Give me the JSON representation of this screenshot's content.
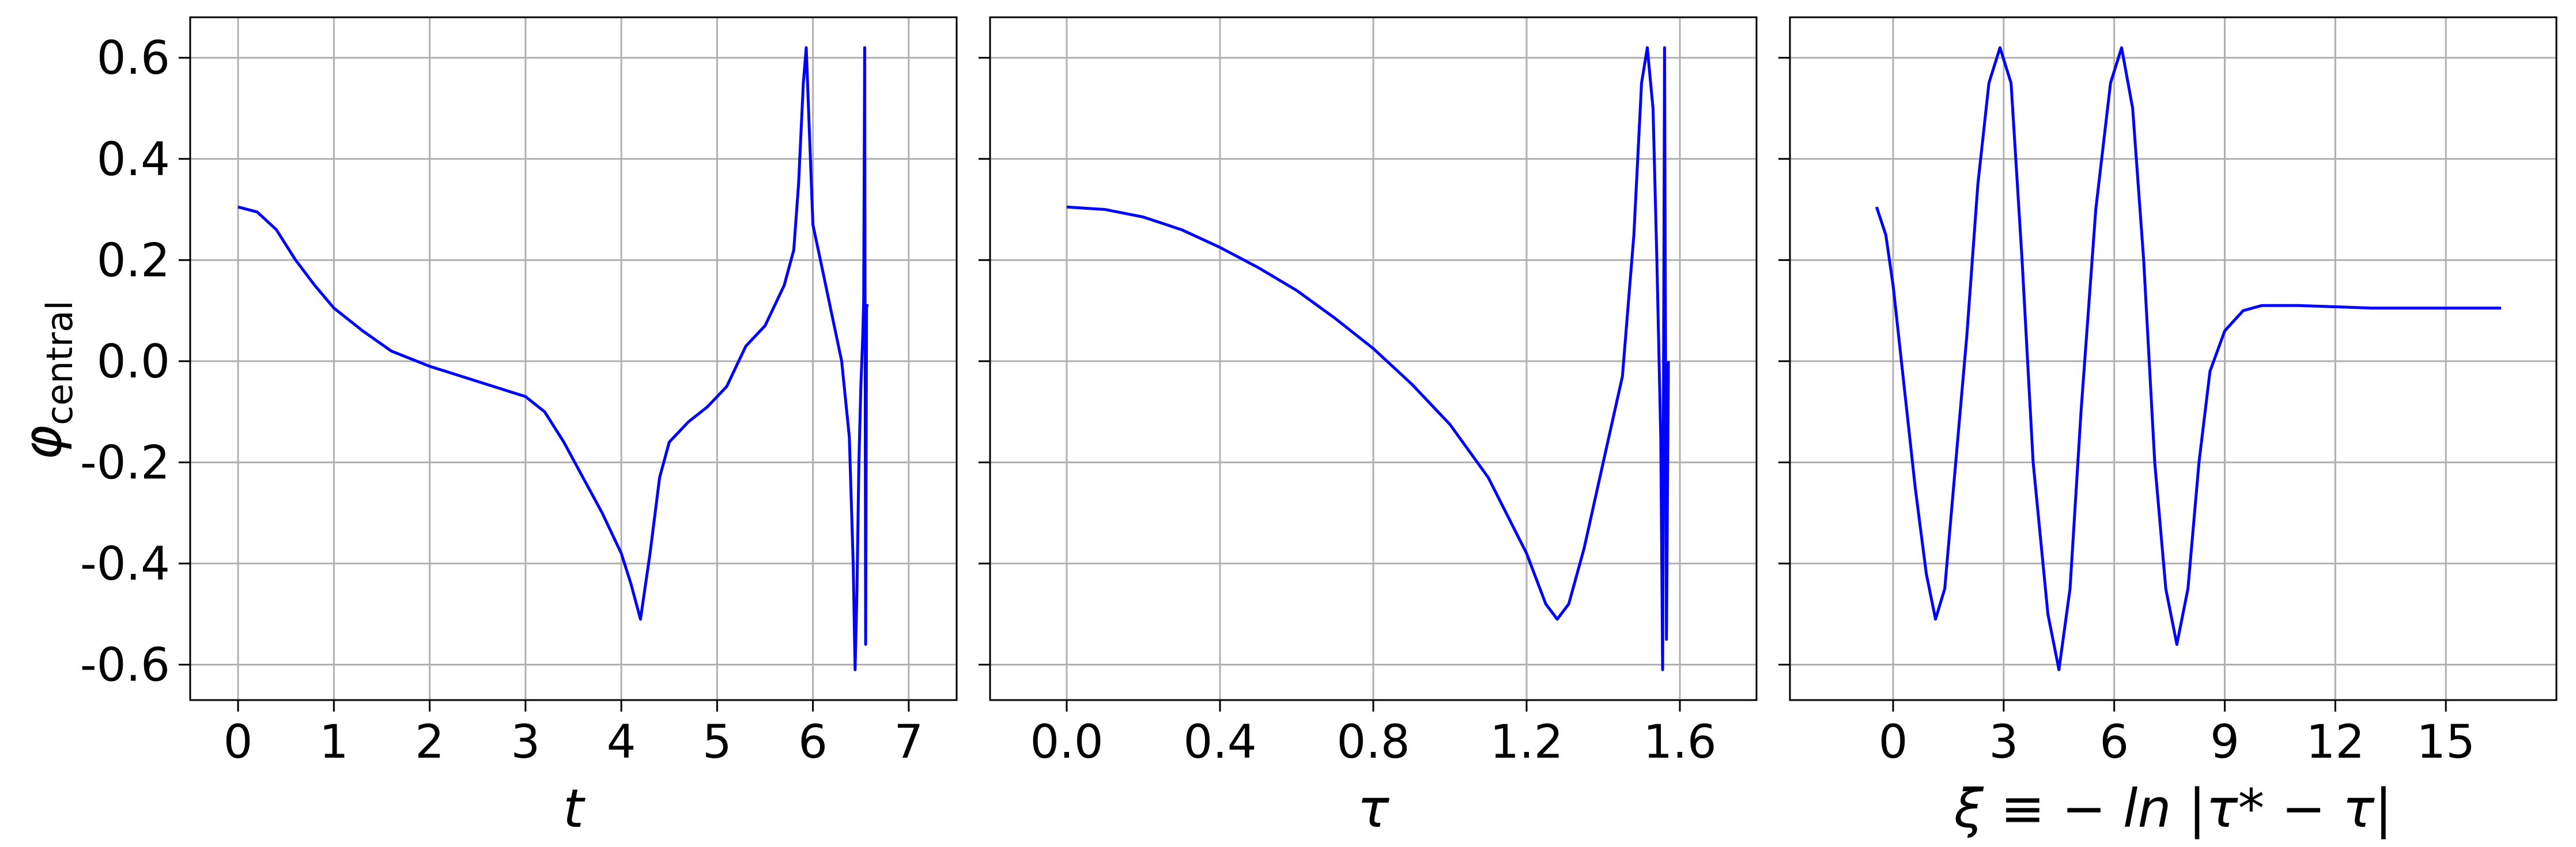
{
  "figure": {
    "ylabel_symbol": "φ",
    "ylabel_subscript": "central",
    "series_color": "#0000ff",
    "grid_color": "#b0b0b0"
  },
  "chart_data": [
    {
      "type": "line",
      "xlabel": "t",
      "xlim": [
        -0.5,
        7.5
      ],
      "ylim": [
        -0.67,
        0.68
      ],
      "xticks": [
        0,
        1,
        2,
        3,
        4,
        5,
        6,
        7
      ],
      "xtick_labels": [
        "0",
        "1",
        "2",
        "3",
        "4",
        "5",
        "6",
        "7"
      ],
      "yticks": [
        -0.6,
        -0.4,
        -0.2,
        0.0,
        0.2,
        0.4,
        0.6
      ],
      "ytick_labels": [
        "-0.6",
        "-0.4",
        "-0.2",
        "0.0",
        "0.2",
        "0.4",
        "0.6"
      ],
      "grid": true,
      "series": [
        {
          "color": "#0000ff",
          "points": [
            [
              0,
              0.305
            ],
            [
              0.2,
              0.295
            ],
            [
              0.4,
              0.26
            ],
            [
              0.6,
              0.2
            ],
            [
              0.8,
              0.15
            ],
            [
              1,
              0.105
            ],
            [
              1.3,
              0.06
            ],
            [
              1.6,
              0.02
            ],
            [
              2,
              -0.01
            ],
            [
              2.5,
              -0.04
            ],
            [
              3,
              -0.07
            ],
            [
              3.2,
              -0.1
            ],
            [
              3.4,
              -0.16
            ],
            [
              3.6,
              -0.23
            ],
            [
              3.8,
              -0.3
            ],
            [
              4,
              -0.38
            ],
            [
              4.1,
              -0.44
            ],
            [
              4.2,
              -0.51
            ],
            [
              4.3,
              -0.38
            ],
            [
              4.4,
              -0.23
            ],
            [
              4.5,
              -0.16
            ],
            [
              4.7,
              -0.12
            ],
            [
              4.9,
              -0.09
            ],
            [
              5.1,
              -0.05
            ],
            [
              5.2,
              -0.01
            ],
            [
              5.3,
              0.03
            ],
            [
              5.5,
              0.07
            ],
            [
              5.7,
              0.15
            ],
            [
              5.8,
              0.22
            ],
            [
              5.85,
              0.35
            ],
            [
              5.9,
              0.55
            ],
            [
              5.93,
              0.62
            ],
            [
              5.97,
              0.42
            ],
            [
              6.0,
              0.27
            ],
            [
              6.1,
              0.18
            ],
            [
              6.2,
              0.09
            ],
            [
              6.3,
              0.0
            ],
            [
              6.38,
              -0.15
            ],
            [
              6.42,
              -0.4
            ],
            [
              6.44,
              -0.61
            ],
            [
              6.46,
              -0.45
            ],
            [
              6.48,
              -0.2
            ],
            [
              6.5,
              -0.05
            ],
            [
              6.52,
              0.05
            ],
            [
              6.53,
              0.12
            ],
            [
              6.54,
              0.62
            ],
            [
              6.55,
              -0.56
            ],
            [
              6.56,
              0.11
            ],
            [
              6.58,
              0.11
            ]
          ]
        }
      ]
    },
    {
      "type": "line",
      "xlabel": "τ",
      "xlim": [
        -0.2,
        1.8
      ],
      "ylim": [
        -0.67,
        0.68
      ],
      "xticks": [
        0.0,
        0.4,
        0.8,
        1.2,
        1.6
      ],
      "xtick_labels": [
        "0.0",
        "0.4",
        "0.8",
        "1.2",
        "1.6"
      ],
      "yticks": [
        -0.6,
        -0.4,
        -0.2,
        0.0,
        0.2,
        0.4,
        0.6
      ],
      "grid": true,
      "series": [
        {
          "color": "#0000ff",
          "points": [
            [
              0,
              0.305
            ],
            [
              0.1,
              0.3
            ],
            [
              0.2,
              0.285
            ],
            [
              0.3,
              0.26
            ],
            [
              0.4,
              0.225
            ],
            [
              0.5,
              0.185
            ],
            [
              0.6,
              0.14
            ],
            [
              0.7,
              0.085
            ],
            [
              0.8,
              0.025
            ],
            [
              0.9,
              -0.045
            ],
            [
              1.0,
              -0.125
            ],
            [
              1.1,
              -0.23
            ],
            [
              1.2,
              -0.38
            ],
            [
              1.25,
              -0.48
            ],
            [
              1.28,
              -0.51
            ],
            [
              1.31,
              -0.48
            ],
            [
              1.35,
              -0.37
            ],
            [
              1.4,
              -0.2
            ],
            [
              1.45,
              -0.03
            ],
            [
              1.48,
              0.25
            ],
            [
              1.5,
              0.55
            ],
            [
              1.515,
              0.62
            ],
            [
              1.53,
              0.5
            ],
            [
              1.54,
              0.2
            ],
            [
              1.55,
              -0.15
            ],
            [
              1.555,
              -0.61
            ],
            [
              1.56,
              0.62
            ],
            [
              1.565,
              -0.55
            ],
            [
              1.57,
              0.0
            ]
          ]
        }
      ]
    },
    {
      "type": "line",
      "xlabel": "ξ ≡ − ln |τ* − τ|",
      "xlim": [
        -2.8,
        18.0
      ],
      "ylim": [
        -0.67,
        0.68
      ],
      "xticks": [
        0,
        3,
        6,
        9,
        12,
        15
      ],
      "xtick_labels": [
        "0",
        "3",
        "6",
        "9",
        "12",
        "15"
      ],
      "yticks": [
        -0.6,
        -0.4,
        -0.2,
        0.0,
        0.2,
        0.4,
        0.6
      ],
      "grid": true,
      "series": [
        {
          "color": "#0000ff",
          "points": [
            [
              -0.45,
              0.305
            ],
            [
              -0.2,
              0.25
            ],
            [
              0.0,
              0.15
            ],
            [
              0.3,
              -0.05
            ],
            [
              0.6,
              -0.25
            ],
            [
              0.9,
              -0.42
            ],
            [
              1.15,
              -0.51
            ],
            [
              1.4,
              -0.45
            ],
            [
              1.7,
              -0.2
            ],
            [
              2.0,
              0.05
            ],
            [
              2.3,
              0.35
            ],
            [
              2.6,
              0.55
            ],
            [
              2.9,
              0.62
            ],
            [
              3.2,
              0.55
            ],
            [
              3.5,
              0.2
            ],
            [
              3.8,
              -0.2
            ],
            [
              4.2,
              -0.5
            ],
            [
              4.5,
              -0.61
            ],
            [
              4.8,
              -0.45
            ],
            [
              5.1,
              -0.1
            ],
            [
              5.5,
              0.3
            ],
            [
              5.9,
              0.55
            ],
            [
              6.2,
              0.62
            ],
            [
              6.5,
              0.5
            ],
            [
              6.8,
              0.2
            ],
            [
              7.1,
              -0.2
            ],
            [
              7.4,
              -0.45
            ],
            [
              7.7,
              -0.56
            ],
            [
              8.0,
              -0.45
            ],
            [
              8.3,
              -0.2
            ],
            [
              8.6,
              -0.02
            ],
            [
              9.0,
              0.06
            ],
            [
              9.5,
              0.1
            ],
            [
              10.0,
              0.11
            ],
            [
              11.0,
              0.11
            ],
            [
              13.0,
              0.105
            ],
            [
              15.0,
              0.105
            ],
            [
              16.5,
              0.105
            ]
          ]
        }
      ]
    }
  ]
}
